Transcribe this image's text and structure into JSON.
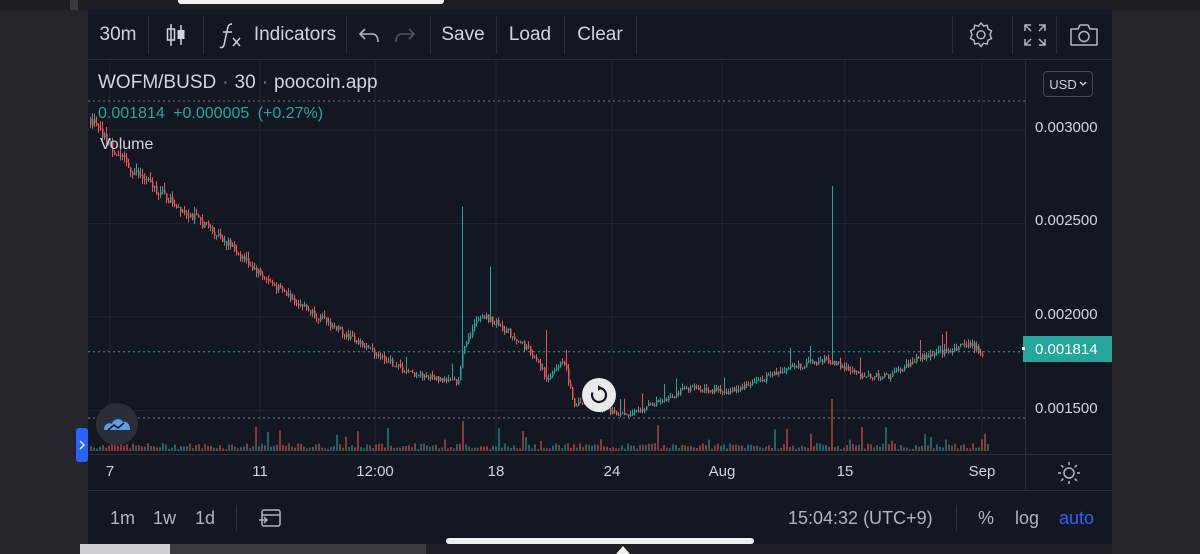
{
  "toolbar": {
    "interval": "30m",
    "indicators_label": "Indicators",
    "save_label": "Save",
    "load_label": "Load",
    "clear_label": "Clear"
  },
  "legend": {
    "symbol": "WOFM/BUSD",
    "interval": "30",
    "source": "poocoin.app",
    "last_price": "0.001814",
    "change": "+0.000005",
    "change_percent": "(+0.27%)",
    "volume_label": "Volume"
  },
  "currency_button": "USD",
  "price_axis": {
    "labels": [
      "0.003000",
      "0.002500",
      "0.002000",
      "0.001500"
    ],
    "current_price_tag": "0.001814"
  },
  "time_axis": {
    "labels": [
      "7",
      "11",
      "12:00",
      "18",
      "24",
      "Aug",
      "15",
      "Sep"
    ]
  },
  "bottom_bar": {
    "range_1m": "1m",
    "range_1w": "1w",
    "range_1d": "1d",
    "clock": "15:04:32 (UTC+9)",
    "percent_label": "%",
    "log_label": "log",
    "auto_label": "auto"
  },
  "colors": {
    "background": "#131722",
    "up": "#26a69a",
    "down": "#ef5350",
    "accent": "#2962ff"
  },
  "icons": [
    "candles-icon",
    "fx-icon",
    "undo-icon",
    "redo-icon",
    "gear-icon",
    "fullscreen-icon",
    "camera-icon",
    "sun-icon",
    "calendar-range-icon",
    "reset-icon",
    "tradingview-logo-icon"
  ]
}
